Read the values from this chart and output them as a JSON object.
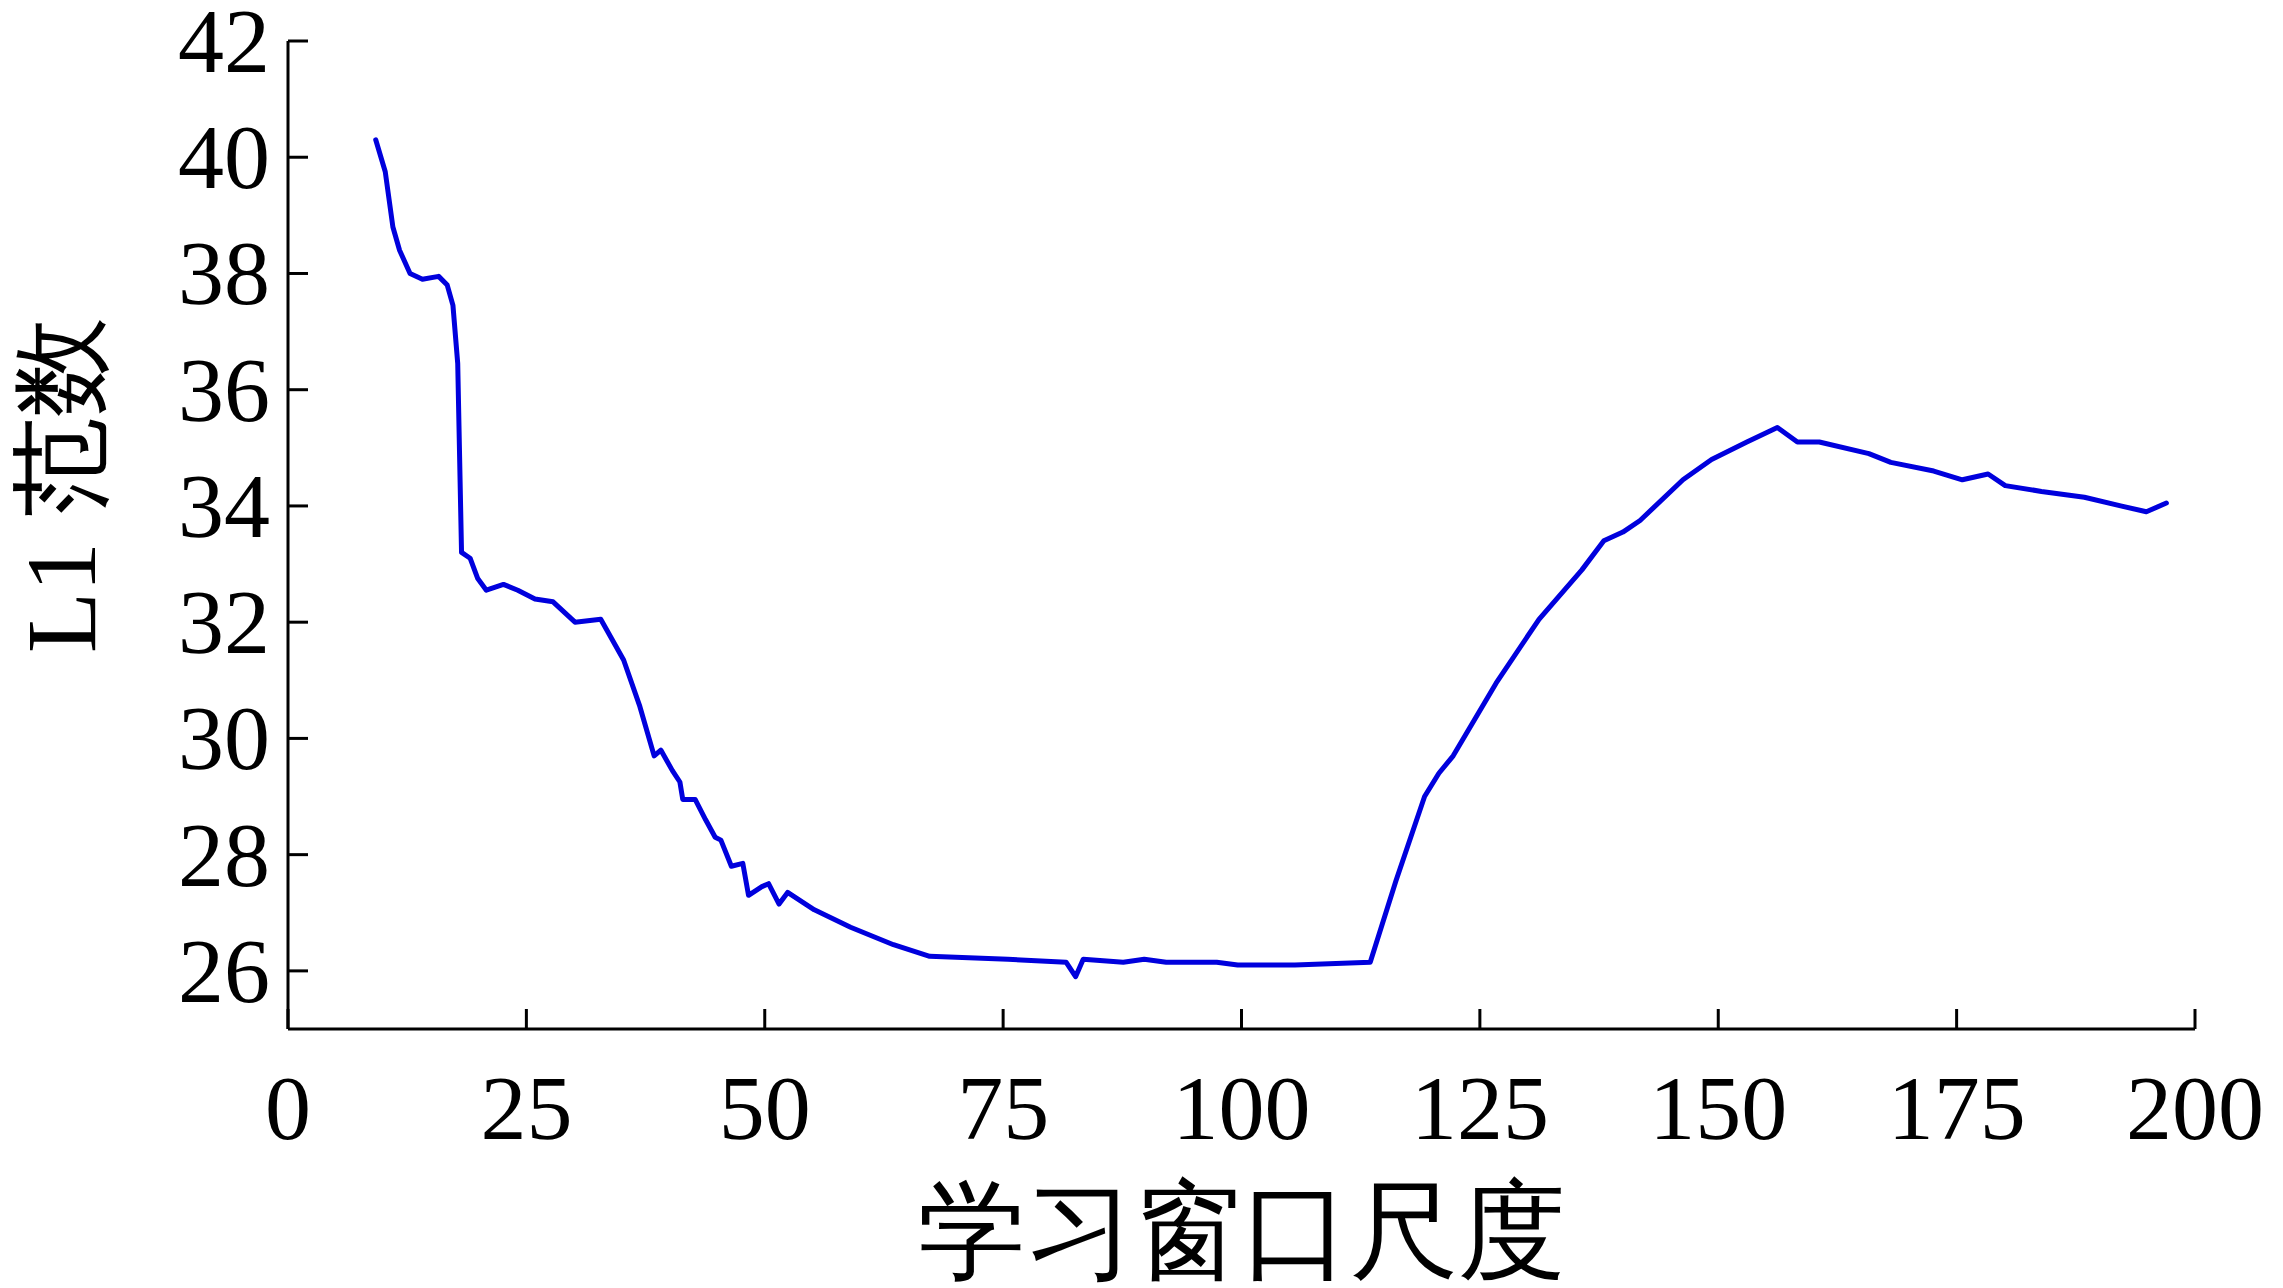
{
  "chart_data": {
    "type": "line",
    "xlabel": "学习窗口尺度",
    "ylabel": "L1 范数",
    "xlim": [
      0,
      200
    ],
    "ylim": [
      25,
      42
    ],
    "xticks": [
      0,
      25,
      50,
      75,
      100,
      125,
      150,
      175,
      200
    ],
    "yticks": [
      26,
      28,
      30,
      32,
      34,
      36,
      38,
      40,
      42
    ],
    "grid": false,
    "marker": "none",
    "line_style": "solid",
    "series": [
      {
        "color": "#0000dd",
        "x": [
          9.2,
          10.2,
          11.0,
          11.7,
          12.8,
          14.1,
          15.8,
          16.7,
          17.3,
          17.8,
          18.2,
          19.1,
          19.9,
          20.8,
          22.6,
          24.1,
          25.9,
          27.8,
          30.1,
          32.8,
          35.2,
          36.9,
          38.4,
          39.1,
          40.3,
          41.1,
          41.4,
          42.7,
          43.8,
          44.8,
          45.4,
          46.5,
          47.7,
          48.3,
          49.7,
          50.4,
          51.5,
          52.4,
          55.2,
          59.0,
          63.5,
          67.3,
          75.5,
          81.6,
          82.6,
          83.4,
          87.6,
          89.8,
          92.1,
          97.4,
          99.6,
          105.6,
          113.5,
          116.2,
          119.2,
          120.7,
          122.2,
          126.7,
          131.2,
          135.7,
          138.0,
          140.0,
          141.8,
          146.3,
          149.3,
          153.0,
          156.2,
          158.3,
          160.6,
          165.8,
          168.1,
          172.6,
          175.6,
          178.3,
          180.1,
          183.9,
          188.4,
          192.2,
          194.9,
          197.0
        ],
        "values": [
          40.3,
          39.75,
          38.8,
          38.4,
          38.0,
          37.9,
          37.95,
          37.8,
          37.45,
          36.45,
          33.2,
          33.1,
          32.75,
          32.55,
          32.65,
          32.55,
          32.4,
          32.35,
          32.0,
          32.05,
          31.35,
          30.55,
          29.7,
          29.8,
          29.45,
          29.25,
          28.95,
          28.95,
          28.6,
          28.3,
          28.25,
          27.8,
          27.85,
          27.3,
          27.45,
          27.5,
          27.15,
          27.35,
          27.05,
          26.75,
          26.45,
          26.25,
          26.2,
          26.15,
          25.9,
          26.2,
          26.15,
          26.2,
          26.15,
          26.15,
          26.1,
          26.1,
          26.15,
          27.55,
          29.0,
          29.4,
          29.7,
          30.95,
          32.05,
          32.9,
          33.4,
          33.55,
          33.75,
          34.45,
          34.8,
          35.1,
          35.35,
          35.1,
          35.1,
          34.9,
          34.75,
          34.6,
          34.45,
          34.55,
          34.35,
          34.25,
          34.15,
          34.0,
          33.9,
          34.05
        ]
      }
    ]
  }
}
